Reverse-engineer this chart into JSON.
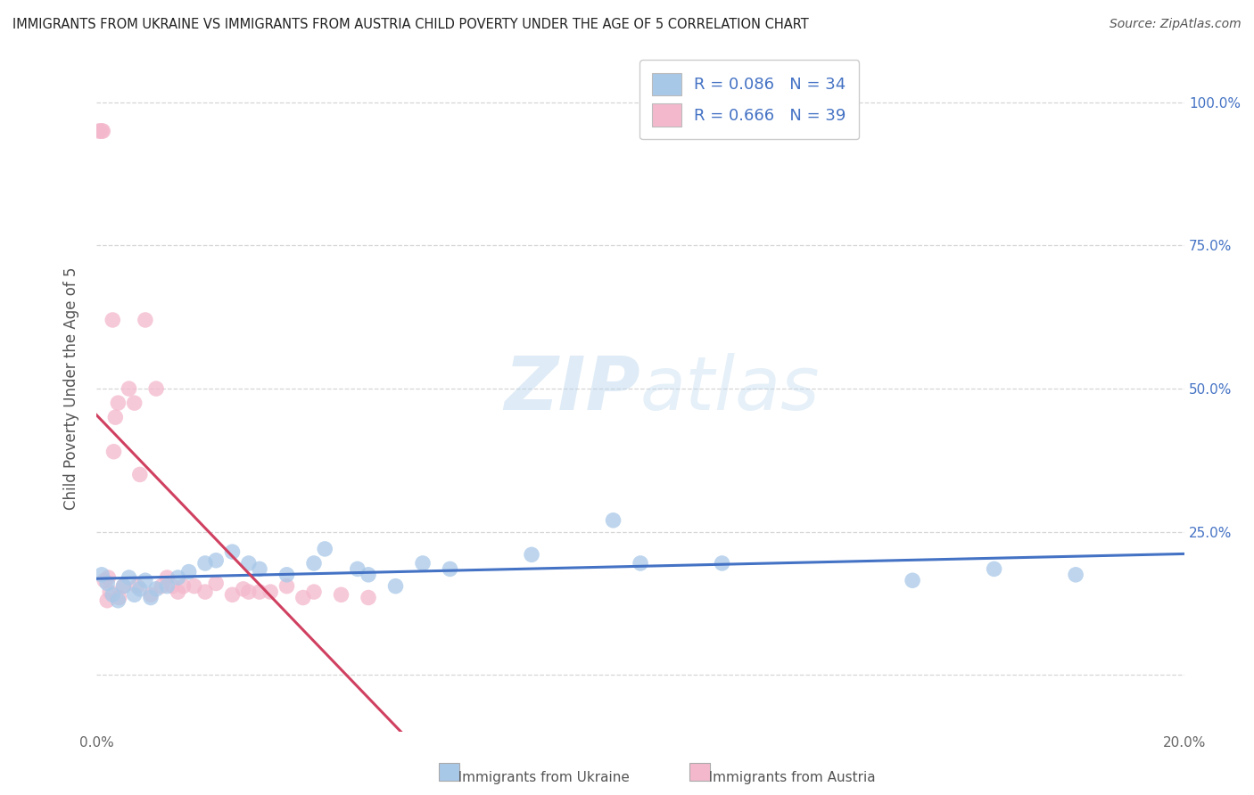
{
  "title": "IMMIGRANTS FROM UKRAINE VS IMMIGRANTS FROM AUSTRIA CHILD POVERTY UNDER THE AGE OF 5 CORRELATION CHART",
  "source": "Source: ZipAtlas.com",
  "ylabel": "Child Poverty Under the Age of 5",
  "xlabel_label_ukraine": "Immigrants from Ukraine",
  "xlabel_label_austria": "Immigrants from Austria",
  "xlim": [
    0.0,
    0.2
  ],
  "ylim": [
    -0.05,
    1.05
  ],
  "x_ticks": [
    0.0,
    0.04,
    0.08,
    0.12,
    0.16,
    0.2
  ],
  "x_tick_labels": [
    "0.0%",
    "",
    "",
    "",
    "",
    "20.0%"
  ],
  "y_ticks": [
    0.0,
    0.25,
    0.5,
    0.75,
    1.0
  ],
  "y_tick_labels_right": [
    "",
    "25.0%",
    "50.0%",
    "75.0%",
    "100.0%"
  ],
  "ukraine_color": "#a8c8e8",
  "ukraine_line_color": "#4472c4",
  "austria_color": "#f4b8cc",
  "austria_line_color": "#d04060",
  "ukraine_R": 0.086,
  "ukraine_N": 34,
  "austria_R": 0.666,
  "austria_N": 39,
  "legend_text_color": "#4472c4",
  "ukraine_scatter_x": [
    0.001,
    0.002,
    0.003,
    0.004,
    0.005,
    0.006,
    0.007,
    0.008,
    0.009,
    0.01,
    0.011,
    0.013,
    0.015,
    0.017,
    0.02,
    0.022,
    0.025,
    0.028,
    0.03,
    0.035,
    0.04,
    0.042,
    0.048,
    0.05,
    0.055,
    0.06,
    0.065,
    0.08,
    0.095,
    0.1,
    0.115,
    0.15,
    0.165,
    0.18
  ],
  "ukraine_scatter_y": [
    0.175,
    0.16,
    0.14,
    0.13,
    0.155,
    0.17,
    0.14,
    0.15,
    0.165,
    0.135,
    0.15,
    0.155,
    0.17,
    0.18,
    0.195,
    0.2,
    0.215,
    0.195,
    0.185,
    0.175,
    0.195,
    0.22,
    0.185,
    0.175,
    0.155,
    0.195,
    0.185,
    0.21,
    0.27,
    0.195,
    0.195,
    0.165,
    0.185,
    0.175
  ],
  "austria_scatter_x": [
    0.0005,
    0.0008,
    0.001,
    0.0012,
    0.0015,
    0.002,
    0.0022,
    0.0025,
    0.003,
    0.0032,
    0.0035,
    0.004,
    0.0042,
    0.005,
    0.006,
    0.007,
    0.0075,
    0.008,
    0.009,
    0.01,
    0.011,
    0.012,
    0.013,
    0.014,
    0.015,
    0.016,
    0.018,
    0.02,
    0.022,
    0.025,
    0.027,
    0.028,
    0.03,
    0.032,
    0.035,
    0.038,
    0.04,
    0.045,
    0.05
  ],
  "austria_scatter_y": [
    0.95,
    0.95,
    0.95,
    0.95,
    0.165,
    0.13,
    0.17,
    0.145,
    0.62,
    0.39,
    0.45,
    0.475,
    0.135,
    0.155,
    0.5,
    0.475,
    0.155,
    0.35,
    0.62,
    0.14,
    0.5,
    0.155,
    0.17,
    0.155,
    0.145,
    0.155,
    0.155,
    0.145,
    0.16,
    0.14,
    0.15,
    0.145,
    0.145,
    0.145,
    0.155,
    0.135,
    0.145,
    0.14,
    0.135
  ],
  "watermark_zip": "ZIP",
  "watermark_atlas": "atlas",
  "background_color": "#ffffff",
  "grid_color": "#cccccc"
}
